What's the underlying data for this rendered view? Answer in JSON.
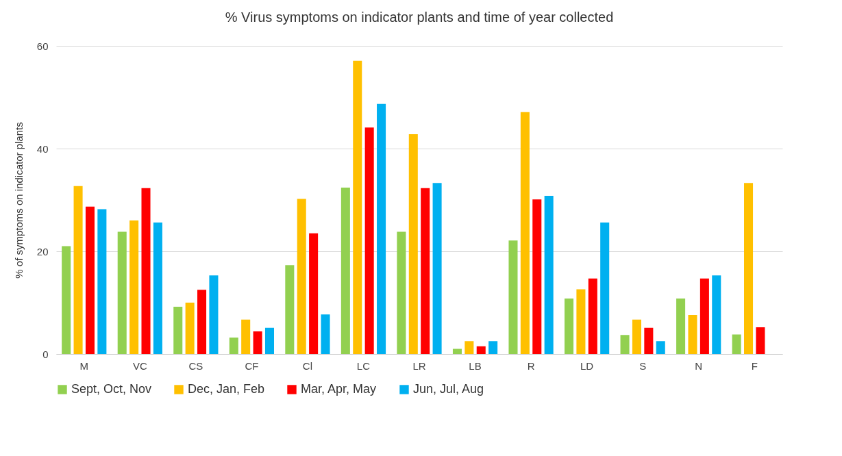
{
  "chart_data": {
    "type": "bar",
    "title": "% Virus symptoms on indicator plants and time of year  collected",
    "ylabel": "% of symptoms on indicator plants",
    "categories": [
      "M",
      "VC",
      "CS",
      "CF",
      "Cl",
      "LC",
      "LR",
      "LB",
      "R",
      "LD",
      "S",
      "N",
      "F"
    ],
    "series": [
      {
        "name": "Sept, Oct, Nov",
        "color": "#92d050",
        "values": [
          21,
          23.8,
          9.2,
          3.2,
          17.3,
          32.4,
          23.8,
          1,
          22.1,
          10.8,
          3.7,
          10.8,
          3.8
        ]
      },
      {
        "name": "Dec, Jan, Feb",
        "color": "#ffc000",
        "values": [
          32.7,
          26,
          10,
          6.7,
          30.2,
          57.1,
          42.8,
          2.5,
          47.1,
          12.6,
          6.7,
          7.6,
          33.3
        ]
      },
      {
        "name": "Mar, Apr, May",
        "color": "#ff0000",
        "values": [
          28.7,
          32.3,
          12.5,
          4.4,
          23.5,
          44.1,
          32.3,
          1.5,
          30.1,
          14.7,
          5.1,
          14.7,
          5.2
        ]
      },
      {
        "name": "Jun, Jul, Aug",
        "color": "#00b0f0",
        "values": [
          28.2,
          25.6,
          15.3,
          5.1,
          7.7,
          48.7,
          33.3,
          2.5,
          30.8,
          25.6,
          2.5,
          15.3,
          null
        ]
      }
    ],
    "ylim": [
      0,
      60
    ],
    "yticks": [
      0,
      20,
      40,
      60
    ],
    "grid": "y",
    "legend": "bottom"
  }
}
